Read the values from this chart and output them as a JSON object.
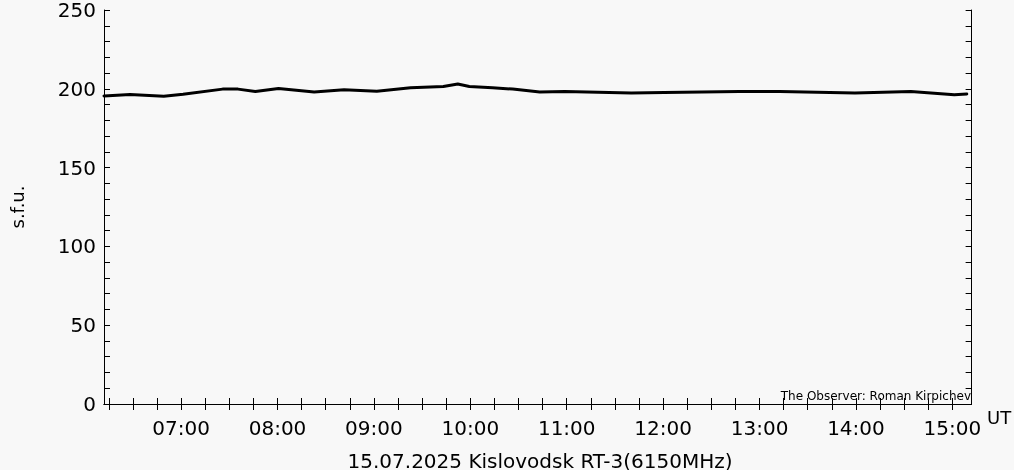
{
  "chart_data": {
    "type": "line",
    "title": "15.07.2025 Kislovodsk RT-3(6150MHz)",
    "xlabel": "UT",
    "ylabel": "s.f.u.",
    "annotations": [
      "The Observer: Roman Kirpichev"
    ],
    "x": [
      6.2,
      6.47,
      6.82,
      7.02,
      7.43,
      7.59,
      7.77,
      8.01,
      8.38,
      8.69,
      9.03,
      9.38,
      9.72,
      9.87,
      9.99,
      10.23,
      10.44,
      10.72,
      10.98,
      11.67,
      12.01,
      12.79,
      13.21,
      13.99,
      14.57,
      15.02,
      15.15
    ],
    "series": [
      {
        "color": "#000000",
        "values": [
          195.5,
          196.4,
          195.2,
          196.5,
          199.8,
          199.8,
          198.3,
          200.2,
          198,
          199.4,
          198.5,
          200.6,
          201.5,
          203,
          201.5,
          200.6,
          199.8,
          198,
          198.3,
          197.3,
          197.7,
          198.3,
          198.3,
          197.3,
          198.3,
          196.3,
          196.7
        ]
      }
    ],
    "xlim": [
      6.2,
      15.2
    ],
    "xticks": [
      {
        "value": 6.25,
        "label": null
      },
      {
        "value": 6.5,
        "label": null
      },
      {
        "value": 6.75,
        "label": null
      },
      {
        "value": 7,
        "label": "07:00"
      },
      {
        "value": 7.25,
        "label": null
      },
      {
        "value": 7.5,
        "label": null
      },
      {
        "value": 7.75,
        "label": null
      },
      {
        "value": 8,
        "label": "08:00"
      },
      {
        "value": 8.25,
        "label": null
      },
      {
        "value": 8.5,
        "label": null
      },
      {
        "value": 8.75,
        "label": null
      },
      {
        "value": 9,
        "label": "09:00"
      },
      {
        "value": 9.25,
        "label": null
      },
      {
        "value": 9.5,
        "label": null
      },
      {
        "value": 9.75,
        "label": null
      },
      {
        "value": 10,
        "label": "10:00"
      },
      {
        "value": 10.25,
        "label": null
      },
      {
        "value": 10.5,
        "label": null
      },
      {
        "value": 10.75,
        "label": null
      },
      {
        "value": 11,
        "label": "11:00"
      },
      {
        "value": 11.25,
        "label": null
      },
      {
        "value": 11.5,
        "label": null
      },
      {
        "value": 11.75,
        "label": null
      },
      {
        "value": 12,
        "label": "12:00"
      },
      {
        "value": 12.25,
        "label": null
      },
      {
        "value": 12.5,
        "label": null
      },
      {
        "value": 12.75,
        "label": null
      },
      {
        "value": 13,
        "label": "13:00"
      },
      {
        "value": 13.25,
        "label": null
      },
      {
        "value": 13.5,
        "label": null
      },
      {
        "value": 13.75,
        "label": null
      },
      {
        "value": 14,
        "label": "14:00"
      },
      {
        "value": 14.25,
        "label": null
      },
      {
        "value": 14.5,
        "label": null
      },
      {
        "value": 14.75,
        "label": null
      },
      {
        "value": 15,
        "label": "15:00"
      }
    ],
    "ylim": [
      0,
      250
    ],
    "yticks": [
      0,
      {
        "value": 10,
        "label": null
      },
      {
        "value": 20,
        "label": null
      },
      {
        "value": 30,
        "label": null
      },
      {
        "value": 40,
        "label": null
      },
      50,
      {
        "value": 60,
        "label": null
      },
      {
        "value": 70,
        "label": null
      },
      {
        "value": 80,
        "label": null
      },
      {
        "value": 90,
        "label": null
      },
      100,
      {
        "value": 110,
        "label": null
      },
      {
        "value": 120,
        "label": null
      },
      {
        "value": 130,
        "label": null
      },
      {
        "value": 140,
        "label": null
      },
      150,
      {
        "value": 160,
        "label": null
      },
      {
        "value": 170,
        "label": null
      },
      {
        "value": 180,
        "label": null
      },
      {
        "value": 190,
        "label": null
      },
      200,
      {
        "value": 210,
        "label": null
      },
      {
        "value": 220,
        "label": null
      },
      {
        "value": 230,
        "label": null
      },
      {
        "value": 240,
        "label": null
      },
      250
    ],
    "grid": false,
    "marker": "none",
    "line_style": "solid"
  }
}
